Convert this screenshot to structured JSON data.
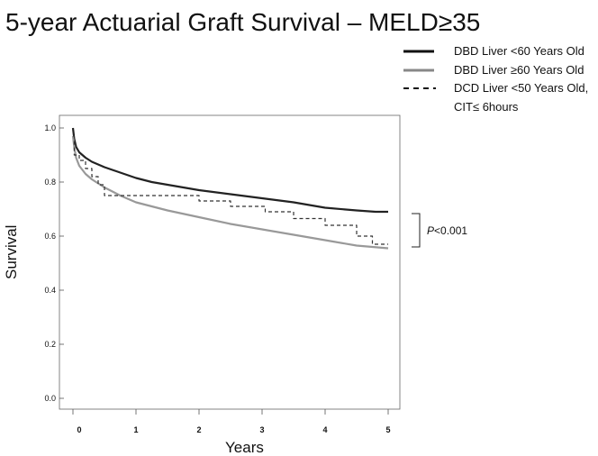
{
  "chart_data": {
    "type": "line",
    "title": "5-year Actuarial Graft Survival – MELD≥35",
    "xlabel": "Years",
    "ylabel": "Survival",
    "xlim": [
      0,
      5
    ],
    "ylim": [
      0.0,
      1.0
    ],
    "xticks": [
      0,
      1,
      2,
      3,
      4,
      5
    ],
    "yticks": [
      0.0,
      0.2,
      0.4,
      0.6,
      0.8,
      1.0
    ],
    "xtick_labels": [
      "0",
      "1",
      "2",
      "3",
      "4",
      "5"
    ],
    "ytick_labels": [
      "0.0",
      "0.2",
      "0.4",
      "0.6",
      "0.8",
      "1.0"
    ],
    "grid": false,
    "legend_position": "top-right",
    "annotation": {
      "italic": "P",
      "rest": "<0.001"
    },
    "series": [
      {
        "name": "DBD Liver <60 Years Old",
        "color": "#222222",
        "style": "solid",
        "x": [
          0,
          0.02,
          0.05,
          0.1,
          0.2,
          0.3,
          0.5,
          0.75,
          1.0,
          1.25,
          1.5,
          2.0,
          2.5,
          3.0,
          3.5,
          4.0,
          4.5,
          4.8,
          5.0
        ],
        "y": [
          1.0,
          0.96,
          0.93,
          0.91,
          0.89,
          0.875,
          0.855,
          0.835,
          0.815,
          0.8,
          0.79,
          0.77,
          0.755,
          0.74,
          0.725,
          0.705,
          0.695,
          0.69,
          0.69
        ]
      },
      {
        "name": "DBD Liver ≥60 Years Old",
        "color": "#999999",
        "style": "solid",
        "x": [
          0,
          0.02,
          0.05,
          0.1,
          0.2,
          0.3,
          0.5,
          0.75,
          1.0,
          1.25,
          1.5,
          2.0,
          2.5,
          3.0,
          3.5,
          4.0,
          4.5,
          5.0
        ],
        "y": [
          0.97,
          0.93,
          0.89,
          0.86,
          0.83,
          0.81,
          0.78,
          0.75,
          0.725,
          0.71,
          0.695,
          0.67,
          0.645,
          0.625,
          0.605,
          0.585,
          0.565,
          0.555
        ]
      },
      {
        "name": "DCD Liver <50 Years Old, CIT≤ 6hours",
        "legend_lines": [
          "DCD Liver <50 Years Old,",
          "CIT≤ 6hours"
        ],
        "color": "#333333",
        "style": "dashed",
        "x": [
          0,
          0.02,
          0.1,
          0.2,
          0.3,
          0.4,
          0.5,
          1.0,
          1.2,
          1.5,
          2.0,
          2.2,
          2.5,
          3.0,
          3.05,
          3.5,
          3.8,
          4.0,
          4.25,
          4.5,
          4.7,
          4.75,
          4.8,
          5.0
        ],
        "y": [
          0.97,
          0.9,
          0.88,
          0.85,
          0.82,
          0.79,
          0.75,
          0.75,
          0.75,
          0.75,
          0.73,
          0.73,
          0.71,
          0.71,
          0.69,
          0.665,
          0.665,
          0.64,
          0.64,
          0.6,
          0.6,
          0.57,
          0.57,
          0.57
        ]
      }
    ]
  }
}
